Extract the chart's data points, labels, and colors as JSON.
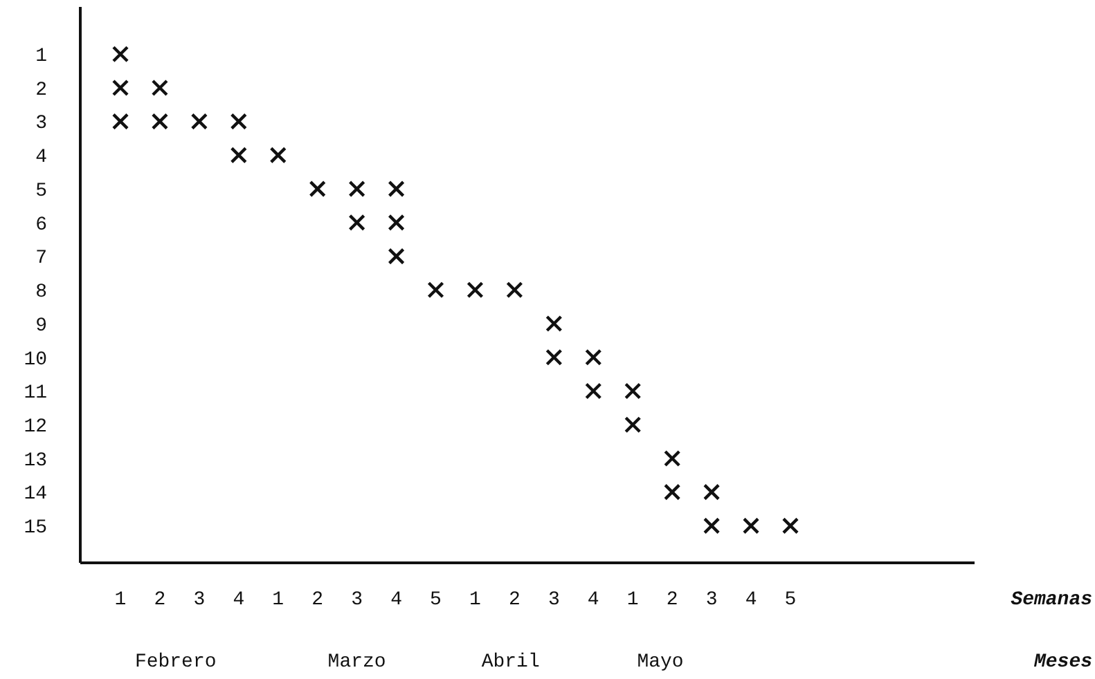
{
  "chart_data": {
    "type": "scatter",
    "marker": "cross",
    "grid": false,
    "categories": [
      "1",
      "2",
      "3",
      "4",
      "1",
      "2",
      "3",
      "4",
      "5",
      "1",
      "2",
      "3",
      "4",
      "1",
      "2",
      "3",
      "4",
      "5"
    ],
    "ylim": [
      16.1,
      -0.4
    ],
    "yticks": [
      1,
      2,
      3,
      4,
      5,
      6,
      7,
      8,
      9,
      10,
      11,
      12,
      13,
      14,
      15
    ],
    "series": [
      {
        "color": "#111111",
        "values": [
          1,
          2,
          3,
          3,
          4,
          5,
          5,
          5,
          8,
          8,
          8,
          9,
          10,
          11,
          13,
          14,
          15,
          15
        ]
      },
      {
        "color": "#111111",
        "values": [
          2,
          3,
          null,
          4,
          null,
          null,
          6,
          6,
          null,
          null,
          null,
          10,
          11,
          12,
          14,
          15,
          null,
          null
        ]
      },
      {
        "color": "#111111",
        "values": [
          3,
          null,
          null,
          null,
          null,
          null,
          null,
          7,
          null,
          null,
          null,
          null,
          null,
          null,
          null,
          null,
          null,
          null
        ]
      }
    ],
    "annotations": [
      "Semanas",
      "Febrero",
      "Marzo",
      "Abril",
      "Mayo",
      "Meses"
    ]
  }
}
